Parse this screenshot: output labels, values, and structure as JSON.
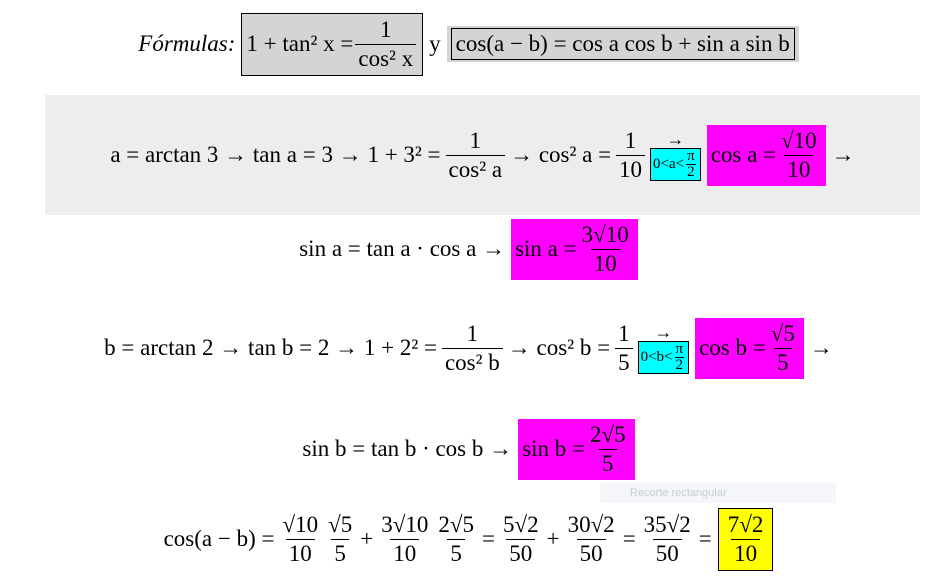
{
  "lines": [
    {
      "items": [
        "Fórmulas:",
        {
          "highlight": "#d4d4d4",
          "border": true,
          "items": [
            "1 + tan² x =",
            {
              "num": "1",
              "den": "cos² x"
            }
          ]
        },
        "y",
        {
          "highlight": "#d4d4d4",
          "items": [
            {
              "border": true,
              "items": [
                "cos(a − b) = cos a cos b + sin a sin b"
              ]
            }
          ]
        }
      ]
    },
    {
      "background": "#ededed",
      "items": [
        "a = arctan 3 → tan a = 3 → 1 + 3² =",
        {
          "num": "1",
          "den": "cos² a"
        },
        "→ cos² a =",
        {
          "num": "1",
          "den": "10"
        },
        {
          "top": "→",
          "bottom": {
            "highlight": "#00ffff",
            "border": true,
            "items": [
              "0<a<",
              {
                "num": "π",
                "den": "2"
              }
            ]
          }
        },
        {
          "highlight": "#ff00ff",
          "items": [
            "cos a =",
            {
              "num": "√10",
              "den": "10"
            }
          ]
        },
        "→"
      ]
    },
    {
      "items": [
        "sin a = tan a · cos a →",
        {
          "highlight": "#ff00ff",
          "items": [
            "sin a =",
            {
              "num": "3√10",
              "den": "10"
            }
          ]
        }
      ]
    },
    {
      "items": [
        "b = arctan 2 → tan b = 2 → 1 + 2² =",
        {
          "num": "1",
          "den": "cos² b"
        },
        "→ cos² b =",
        {
          "num": "1",
          "den": "5"
        },
        {
          "top": "→",
          "bottom": {
            "highlight": "#00ffff",
            "border": true,
            "items": [
              "0<b<",
              {
                "num": "π",
                "den": "2"
              }
            ]
          }
        },
        {
          "highlight": "#ff00ff",
          "items": [
            "cos b =",
            {
              "num": "√5",
              "den": "5"
            }
          ]
        },
        "→"
      ]
    },
    {
      "items": [
        "sin b = tan b · cos b →",
        {
          "highlight": "#ff00ff",
          "items": [
            "sin b =",
            {
              "num": "2√5",
              "den": "5"
            }
          ]
        }
      ]
    },
    {
      "items": [
        "cos(a − b) =",
        {
          "num": "√10",
          "den": "10"
        },
        {
          "num": "√5",
          "den": "5"
        },
        "+",
        {
          "num": "3√10",
          "den": "10"
        },
        {
          "num": "2√5",
          "den": "5"
        },
        "=",
        {
          "num": "5√2",
          "den": "50"
        },
        "+",
        {
          "num": "30√2",
          "den": "50"
        },
        "=",
        {
          "num": "35√2",
          "den": "50"
        },
        "=",
        {
          "highlight": "#ffff00",
          "border": true,
          "items": [
            {
              "num": "7√2",
              "den": "10"
            }
          ]
        }
      ]
    }
  ],
  "tooltip": "Recorte rectangular"
}
